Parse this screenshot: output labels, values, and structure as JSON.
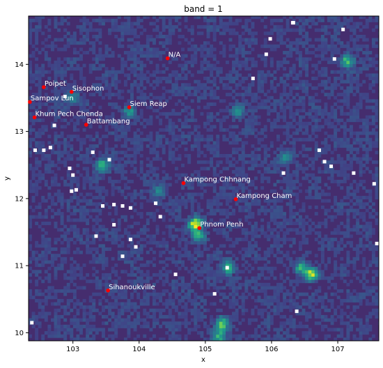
{
  "chart_data": {
    "type": "heatmap",
    "title": "band = 1",
    "xlabel": "x",
    "ylabel": "y",
    "xlim": [
      102.33,
      107.62
    ],
    "ylim": [
      9.88,
      14.72
    ],
    "xticks": [
      103,
      104,
      105,
      106,
      107
    ],
    "yticks": [
      10,
      11,
      12,
      13,
      14
    ],
    "colormap": "viridis",
    "color_scale": [
      "#440154",
      "#482878",
      "#3e4989",
      "#31688e",
      "#26828e",
      "#1f9e89",
      "#35b779",
      "#6ece58",
      "#b5de2b",
      "#fde725"
    ],
    "background_color": "#452d6e",
    "marker_color": "#ff0000",
    "label_color": "#ffffff",
    "grid": false,
    "points": [
      {
        "label": "N/A",
        "x": 104.43,
        "y": 14.09
      },
      {
        "label": "Poipet",
        "x": 102.56,
        "y": 13.66
      },
      {
        "label": "Sisophon",
        "x": 102.98,
        "y": 13.59
      },
      {
        "label": "Sampov Lun",
        "x": 102.35,
        "y": 13.44
      },
      {
        "label": "Siem Reap",
        "x": 103.85,
        "y": 13.36
      },
      {
        "label": "Khum Pech Chenda",
        "x": 102.42,
        "y": 13.21
      },
      {
        "label": "Battambang",
        "x": 103.2,
        "y": 13.1
      },
      {
        "label": "Kampong Chhnang",
        "x": 104.67,
        "y": 12.23
      },
      {
        "label": "Kampong Cham",
        "x": 105.46,
        "y": 11.99
      },
      {
        "label": "Phnom Penh",
        "x": 104.91,
        "y": 11.56
      },
      {
        "label": "Sihanoukville",
        "x": 103.53,
        "y": 10.63
      }
    ],
    "hotspots": [
      {
        "x": 104.85,
        "y": 11.62,
        "value": 0.85
      },
      {
        "x": 104.9,
        "y": 11.45,
        "value": 0.55
      },
      {
        "x": 106.6,
        "y": 10.87,
        "value": 0.75
      },
      {
        "x": 106.45,
        "y": 10.97,
        "value": 0.5
      },
      {
        "x": 105.25,
        "y": 10.13,
        "value": 0.6
      },
      {
        "x": 105.2,
        "y": 9.95,
        "value": 0.45
      },
      {
        "x": 105.35,
        "y": 10.97,
        "value": 0.55
      },
      {
        "x": 107.15,
        "y": 14.05,
        "value": 0.55
      },
      {
        "x": 103.45,
        "y": 12.5,
        "value": 0.45
      },
      {
        "x": 103.85,
        "y": 13.3,
        "value": 0.4
      },
      {
        "x": 105.5,
        "y": 13.3,
        "value": 0.35
      },
      {
        "x": 104.3,
        "y": 12.1,
        "value": 0.3
      },
      {
        "x": 106.2,
        "y": 12.6,
        "value": 0.3
      },
      {
        "x": 103.0,
        "y": 13.5,
        "value": 0.3
      }
    ],
    "nodata_cells": [
      {
        "x": 106.32,
        "y": 14.62
      },
      {
        "x": 106.33,
        "y": 14.62
      },
      {
        "x": 105.98,
        "y": 14.38
      },
      {
        "x": 105.92,
        "y": 14.15
      },
      {
        "x": 107.08,
        "y": 14.52
      },
      {
        "x": 106.95,
        "y": 14.08
      },
      {
        "x": 105.72,
        "y": 13.79
      },
      {
        "x": 102.88,
        "y": 13.52
      },
      {
        "x": 102.72,
        "y": 13.09
      },
      {
        "x": 102.43,
        "y": 12.72
      },
      {
        "x": 102.56,
        "y": 12.72
      },
      {
        "x": 102.66,
        "y": 12.76
      },
      {
        "x": 103.3,
        "y": 12.69
      },
      {
        "x": 103.55,
        "y": 12.58
      },
      {
        "x": 102.95,
        "y": 12.45
      },
      {
        "x": 103.0,
        "y": 12.35
      },
      {
        "x": 102.98,
        "y": 12.11
      },
      {
        "x": 103.05,
        "y": 12.13
      },
      {
        "x": 103.45,
        "y": 11.89
      },
      {
        "x": 103.62,
        "y": 11.91
      },
      {
        "x": 103.75,
        "y": 11.89
      },
      {
        "x": 103.87,
        "y": 11.86
      },
      {
        "x": 104.25,
        "y": 11.93
      },
      {
        "x": 104.32,
        "y": 11.73
      },
      {
        "x": 103.62,
        "y": 11.61
      },
      {
        "x": 103.35,
        "y": 11.44
      },
      {
        "x": 103.87,
        "y": 11.39
      },
      {
        "x": 103.95,
        "y": 11.28
      },
      {
        "x": 103.75,
        "y": 11.14
      },
      {
        "x": 104.55,
        "y": 10.87
      },
      {
        "x": 105.33,
        "y": 10.97
      },
      {
        "x": 105.14,
        "y": 10.58
      },
      {
        "x": 102.38,
        "y": 10.15
      },
      {
        "x": 106.18,
        "y": 12.38
      },
      {
        "x": 106.72,
        "y": 12.72
      },
      {
        "x": 106.8,
        "y": 12.55
      },
      {
        "x": 106.9,
        "y": 12.48
      },
      {
        "x": 107.24,
        "y": 12.38
      },
      {
        "x": 107.55,
        "y": 12.22
      },
      {
        "x": 107.59,
        "y": 11.33
      },
      {
        "x": 106.38,
        "y": 10.32
      }
    ]
  }
}
